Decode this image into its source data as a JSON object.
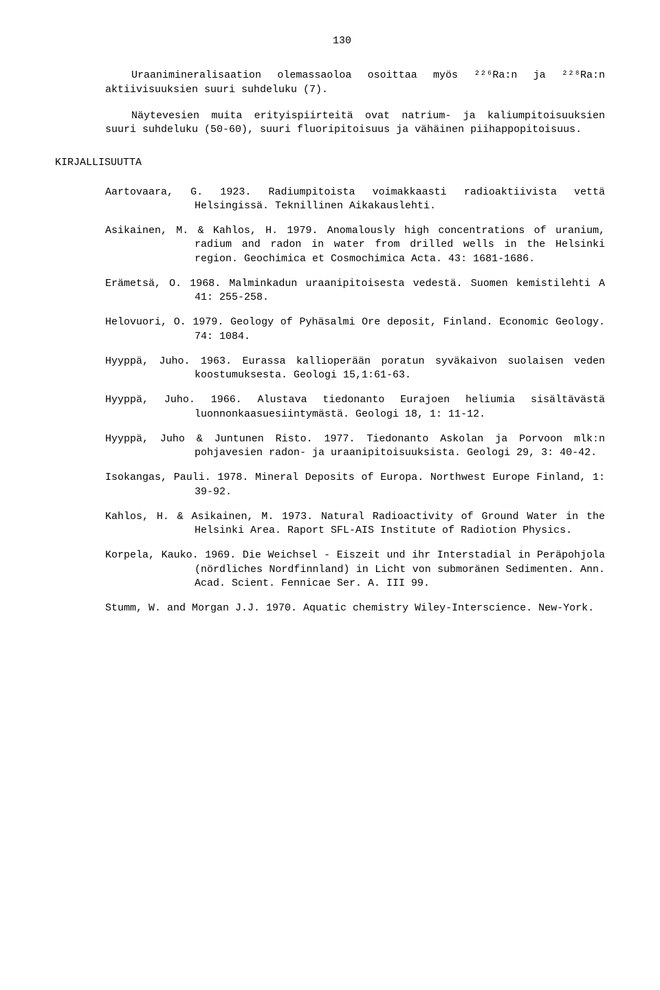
{
  "page_number": "130",
  "para1": "Uraanimineralisaation olemassaoloa osoittaa myös ²²⁶Ra:n ja ²²⁸Ra:n aktiivisuuksien suuri suhdeluku (7).",
  "para2": "Näytevesien muita erityispiirteitä ovat natrium- ja kaliumpitoisuuksien suuri suhdeluku (50-60), suuri fluoripitoisuus ja vähäinen piihappopitoisuus.",
  "section_heading": "KIRJALLISUUTTA",
  "refs": [
    "Aartovaara, G. 1923. Radiumpitoista voimakkaasti radioaktiivista vettä Helsingissä. Teknillinen Aikakauslehti.",
    "Asikainen, M. & Kahlos, H. 1979. Anomalously high concentrations of uranium, radium and radon in water from drilled wells in the Helsinki region. Geochimica et Cosmochimica Acta. 43: 1681-1686.",
    "Erämetsä, O. 1968. Malminkadun uraanipitoisesta vedestä. Suomen kemistilehti A 41: 255-258.",
    "Helovuori, O. 1979. Geology of Pyhäsalmi Ore deposit, Finland. Economic Geology. 74: 1084.",
    "Hyyppä, Juho. 1963. Eurassa kallioperään poratun syväkaivon suolaisen veden koostumuksesta. Geologi 15,1:61-63.",
    "Hyyppä, Juho. 1966. Alustava tiedonanto Eurajoen heliumia sisältävästä luonnonkaasuesiintymästä. Geologi 18, 1: 11-12.",
    "Hyyppä, Juho & Juntunen Risto. 1977. Tiedonanto Askolan ja Porvoon mlk:n pohjavesien radon- ja uraanipitoisuuksista. Geologi 29, 3: 40-42.",
    "Isokangas, Pauli. 1978. Mineral Deposits of Europa. Northwest Europe Finland, 1: 39-92.",
    "Kahlos, H. & Asikainen, M. 1973. Natural Radioactivity of Ground Water in the Helsinki Area. Raport SFL-AIS Institute of Radiotion Physics.",
    "Korpela, Kauko. 1969. Die Weichsel - Eiszeit und ihr Interstadial in Peräpohjola (nördliches Nordfinnland) in Licht von submoränen Sedimenten. Ann. Acad. Scient. Fennicae Ser. A. III 99.",
    "Stumm, W. and Morgan J.J. 1970. Aquatic chemistry Wiley-Interscience. New-York."
  ]
}
